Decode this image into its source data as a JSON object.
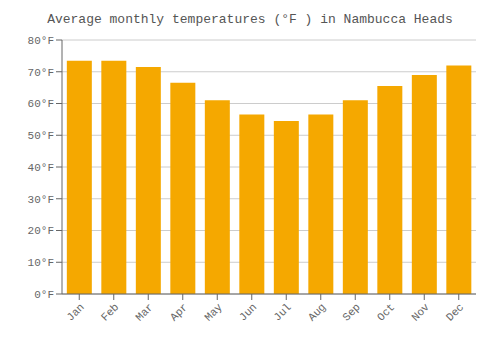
{
  "chart_data": {
    "type": "bar",
    "title": "Average monthly temperatures (°F ) in Nambucca Heads",
    "categories": [
      "Jan",
      "Feb",
      "Mar",
      "Apr",
      "May",
      "Jun",
      "Jul",
      "Aug",
      "Sep",
      "Oct",
      "Nov",
      "Dec"
    ],
    "values": [
      73.5,
      73.5,
      71.5,
      66.5,
      61.0,
      56.5,
      54.5,
      56.5,
      61.0,
      65.5,
      69.0,
      72.0
    ],
    "color": "#F5A800",
    "ylim": [
      0,
      80
    ],
    "yticks": [
      {
        "value": 0,
        "label": "0°F"
      },
      {
        "value": 10,
        "label": "10°F"
      },
      {
        "value": 20,
        "label": "20°F"
      },
      {
        "value": 30,
        "label": "30°F"
      },
      {
        "value": 40,
        "label": "40°F"
      },
      {
        "value": 50,
        "label": "50°F"
      },
      {
        "value": 60,
        "label": "60°F"
      },
      {
        "value": 70,
        "label": "70°F"
      },
      {
        "value": 80,
        "label": "80°F"
      }
    ],
    "grid": true
  }
}
